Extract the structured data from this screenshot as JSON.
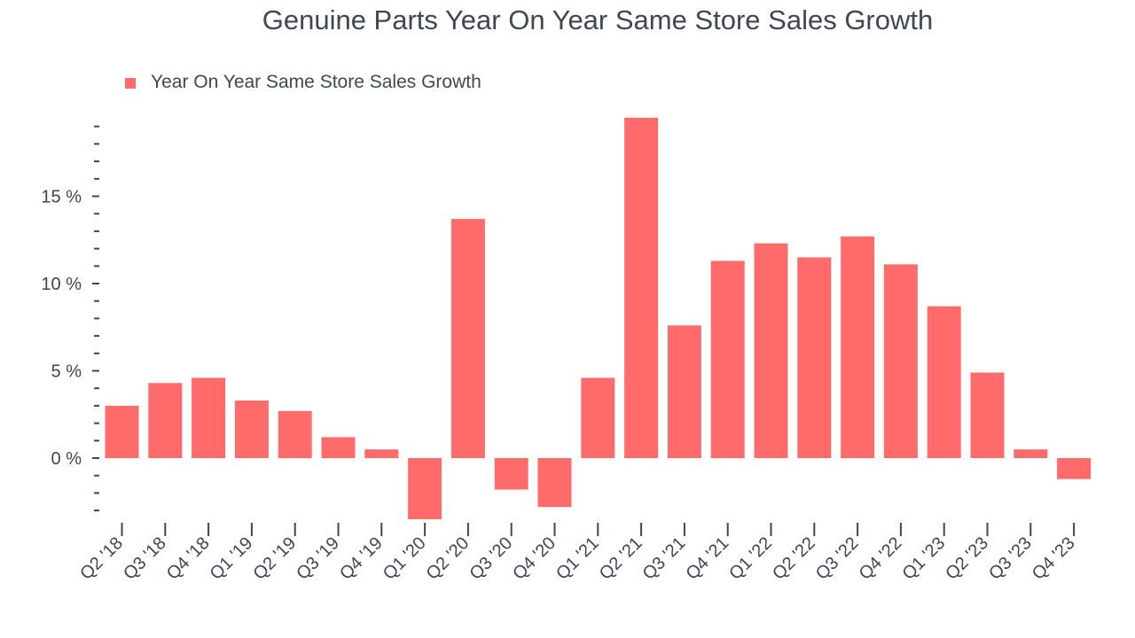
{
  "chart_data": {
    "type": "bar",
    "title": "Genuine Parts Year On Year Same Store Sales Growth",
    "legend": {
      "position": "top-left",
      "entries": [
        "Year On Year Same Store Sales Growth"
      ]
    },
    "series": [
      {
        "name": "Year On Year Same Store Sales Growth",
        "color": "#ff6b6b",
        "values": [
          3.0,
          4.3,
          4.6,
          3.3,
          2.7,
          1.2,
          0.5,
          -3.5,
          13.7,
          -1.8,
          -2.8,
          4.6,
          19.5,
          7.6,
          11.3,
          12.3,
          11.5,
          12.7,
          11.1,
          8.7,
          4.9,
          0.5,
          -1.2
        ]
      }
    ],
    "categories": [
      "Q2 '18",
      "Q3 '18",
      "Q4 '18",
      "Q1 '19",
      "Q2 '19",
      "Q3 '19",
      "Q4 '19",
      "Q1 '20",
      "Q2 '20",
      "Q3 '20",
      "Q4 '20",
      "Q1 '21",
      "Q2 '21",
      "Q3 '21",
      "Q4 '21",
      "Q1 '22",
      "Q2 '22",
      "Q3 '22",
      "Q4 '22",
      "Q1 '23",
      "Q2 '23",
      "Q3 '23",
      "Q4 '23"
    ],
    "y_ticks": [
      {
        "value": 0,
        "label": "0 %"
      },
      {
        "value": 5,
        "label": "5 %"
      },
      {
        "value": 10,
        "label": "10 %"
      },
      {
        "value": 15,
        "label": "15 %"
      }
    ],
    "y_minor_step": 1,
    "ylim": [
      -3.1,
      19.0
    ],
    "grid": false,
    "colors": {
      "text": "#3f4654",
      "bar": "#ff6b6b"
    }
  }
}
